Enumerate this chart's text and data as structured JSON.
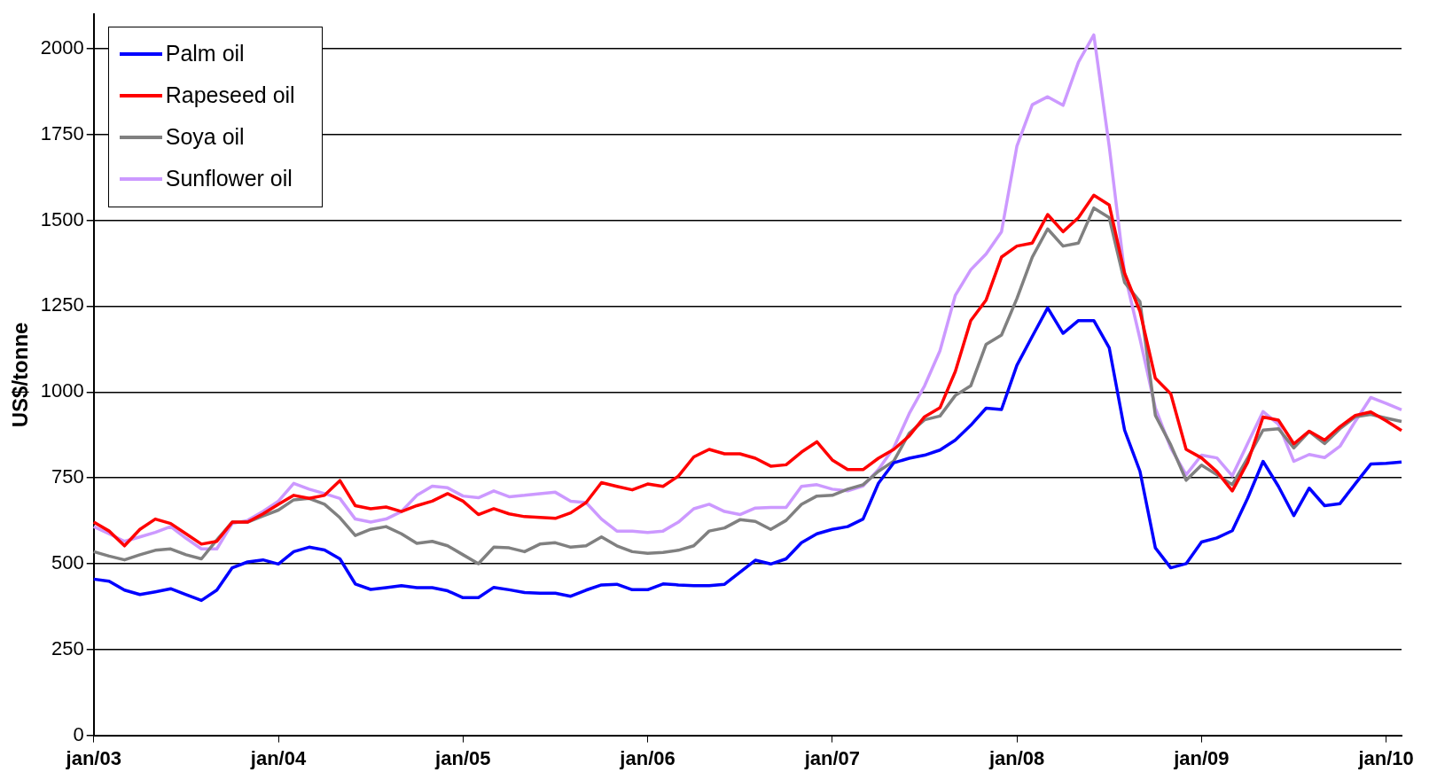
{
  "chart_data": {
    "type": "line",
    "ylabel": "US$/tonne",
    "categories": [
      "jan/03",
      null,
      null,
      null,
      null,
      null,
      null,
      null,
      null,
      null,
      null,
      null,
      "jan/04",
      null,
      null,
      null,
      null,
      null,
      null,
      null,
      null,
      null,
      null,
      null,
      "jan/05",
      null,
      null,
      null,
      null,
      null,
      null,
      null,
      null,
      null,
      null,
      null,
      "jan/06",
      null,
      null,
      null,
      null,
      null,
      null,
      null,
      null,
      null,
      null,
      null,
      "jan/07",
      null,
      null,
      null,
      null,
      null,
      null,
      null,
      null,
      null,
      null,
      null,
      "jan/08",
      null,
      null,
      null,
      null,
      null,
      null,
      null,
      null,
      null,
      null,
      null,
      "jan/09",
      null,
      null,
      null,
      null,
      null,
      null,
      null,
      null,
      null,
      null,
      null,
      "jan/10",
      null
    ],
    "series": [
      {
        "name": "Palm oil",
        "color": "#0000ff",
        "values": [
          455,
          449,
          423,
          410,
          418,
          427,
          410,
          393,
          423,
          488,
          505,
          511,
          499,
          535,
          548,
          540,
          514,
          441,
          425,
          430,
          436,
          430,
          430,
          421,
          401,
          401,
          431,
          424,
          416,
          414,
          414,
          405,
          423,
          438,
          440,
          424,
          424,
          441,
          438,
          436,
          436,
          440,
          475,
          510,
          499,
          514,
          561,
          587,
          600,
          608,
          630,
          734,
          794,
          807,
          816,
          831,
          860,
          903,
          953,
          949,
          1078,
          1162,
          1245,
          1171,
          1208,
          1208,
          1129,
          889,
          769,
          546,
          488,
          500,
          563,
          575,
          596,
          691,
          798,
          725,
          640,
          720,
          669,
          675,
          733,
          790,
          792,
          796
        ]
      },
      {
        "name": "Rapeseed oil",
        "color": "#ff0000",
        "values": [
          621,
          595,
          552,
          600,
          630,
          617,
          587,
          557,
          565,
          621,
          621,
          645,
          673,
          699,
          690,
          699,
          742,
          669,
          660,
          665,
          652,
          669,
          682,
          704,
          682,
          643,
          660,
          645,
          637,
          635,
          632,
          648,
          678,
          736,
          725,
          715,
          732,
          725,
          755,
          811,
          833,
          820,
          820,
          807,
          784,
          788,
          825,
          855,
          802,
          774,
          774,
          807,
          833,
          872,
          928,
          954,
          1060,
          1208,
          1268,
          1393,
          1425,
          1434,
          1517,
          1467,
          1508,
          1573,
          1545,
          1346,
          1235,
          1040,
          995,
          833,
          808,
          768,
          712,
          795,
          927,
          918,
          849,
          886,
          860,
          899,
          932,
          942,
          916,
          888
        ]
      },
      {
        "name": "Soya oil",
        "color": "#808080",
        "values": [
          535,
          522,
          511,
          526,
          539,
          543,
          526,
          514,
          569,
          621,
          621,
          639,
          656,
          686,
          690,
          673,
          634,
          582,
          600,
          608,
          587,
          559,
          565,
          552,
          526,
          500,
          548,
          546,
          535,
          557,
          561,
          548,
          552,
          578,
          552,
          535,
          530,
          533,
          539,
          552,
          595,
          604,
          628,
          623,
          600,
          626,
          673,
          697,
          699,
          717,
          730,
          769,
          799,
          880,
          919,
          930,
          990,
          1018,
          1139,
          1166,
          1272,
          1393,
          1475,
          1425,
          1434,
          1536,
          1508,
          1319,
          1263,
          932,
          846,
          743,
          787,
          759,
          730,
          808,
          889,
          893,
          837,
          885,
          850,
          893,
          928,
          935,
          924,
          914
        ]
      },
      {
        "name": "Sunflower oil",
        "color": "#cc99ff",
        "values": [
          608,
          587,
          565,
          578,
          591,
          608,
          574,
          543,
          543,
          617,
          626,
          652,
          682,
          734,
          717,
          704,
          690,
          630,
          621,
          630,
          652,
          699,
          726,
          721,
          697,
          692,
          712,
          695,
          699,
          704,
          708,
          682,
          678,
          630,
          595,
          595,
          591,
          595,
          621,
          660,
          673,
          652,
          643,
          662,
          664,
          664,
          725,
          730,
          717,
          712,
          726,
          774,
          838,
          937,
          1018,
          1120,
          1282,
          1356,
          1402,
          1467,
          1716,
          1837,
          1860,
          1835,
          1961,
          2040,
          1716,
          1346,
          1155,
          953,
          837,
          759,
          816,
          808,
          756,
          850,
          943,
          906,
          798,
          818,
          809,
          842,
          915,
          984,
          967,
          948
        ]
      }
    ],
    "ylim": [
      0,
      2100
    ],
    "yticks": [
      0,
      250,
      500,
      750,
      1000,
      1250,
      1500,
      1750,
      2000
    ],
    "grid": "y",
    "legend": "top left",
    "marker": "none",
    "line_style": "solid"
  }
}
